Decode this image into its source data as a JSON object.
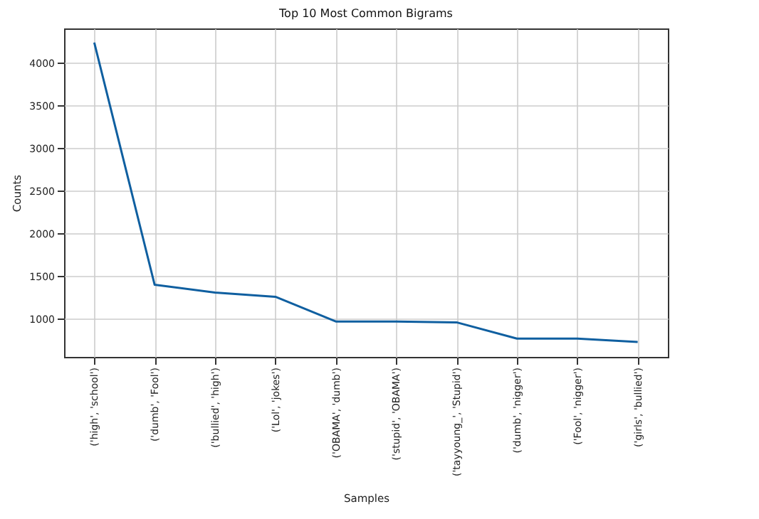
{
  "chart_data": {
    "type": "line",
    "title": "Top 10 Most Common Bigrams",
    "xlabel": "Samples",
    "ylabel": "Counts",
    "categories": [
      "('high', 'school')",
      "('dumb', 'Fool')",
      "('bullied', 'high')",
      "('Lol', 'jokes')",
      "('OBAMA', 'dumb')",
      "('stupid', 'OBAMA')",
      "('tayyoung_', 'Stupid')",
      "('dumb', 'nigger')",
      "('Fool', 'nigger')",
      "('girls', 'bullied')"
    ],
    "series": [
      {
        "color": "#0f5fa0",
        "values": [
          4240,
          1400,
          1310,
          1260,
          970,
          970,
          960,
          770,
          770,
          730
        ]
      }
    ],
    "ylim": [
      555,
      4405
    ],
    "yticks": [
      1000,
      1500,
      2000,
      2500,
      3000,
      3500,
      4000
    ],
    "grid": true,
    "marker": "none",
    "line_style": "solid"
  }
}
